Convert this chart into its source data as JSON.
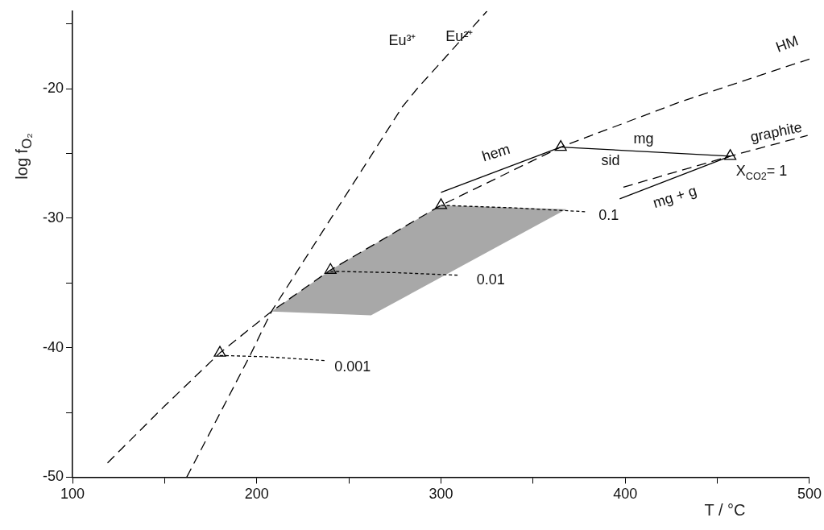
{
  "chart_data": {
    "type": "line",
    "xlabel": "T / °C",
    "ylabel": "log f$_{O₂}$",
    "xlim": [
      100,
      500
    ],
    "xticks": [
      100,
      {
        "value": 150,
        "label": null
      },
      200,
      {
        "value": 250,
        "label": null
      },
      300,
      {
        "value": 350,
        "label": null
      },
      400,
      {
        "value": 450,
        "label": null
      },
      500
    ],
    "ylim": [
      -50,
      -14
    ],
    "yticks": [
      -50,
      {
        "value": -45,
        "label": null
      },
      -40,
      {
        "value": -35,
        "label": null
      },
      -30,
      {
        "value": -25,
        "label": null
      },
      -20,
      {
        "value": -15,
        "label": null
      }
    ],
    "series": [
      {
        "type": "area",
        "color": "#a8a8a8",
        "x": [
          208,
          240,
          300,
          368,
          262,
          208
        ],
        "values": [
          -37.2,
          -34.0,
          -29.0,
          -29.3,
          -37.5,
          -37.2
        ]
      },
      {
        "type": "line",
        "line_style": "dashed",
        "color": "#000000",
        "x": [
          119,
          150,
          180,
          208,
          240,
          300,
          365,
          430,
          500
        ],
        "values": [
          -48.9,
          -44.5,
          -40.4,
          -37.2,
          -34.0,
          -29.0,
          -24.5,
          -21.0,
          -17.7
        ]
      },
      {
        "type": "line",
        "line_style": "dashed",
        "color": "#000000",
        "x": [
          162,
          196,
          208,
          221,
          279,
          287,
          325
        ],
        "values": [
          -50,
          -40.7,
          -37.2,
          -34.3,
          -21.4,
          -20,
          -14
        ]
      },
      {
        "type": "line",
        "line_style": "dashed",
        "color": "#000000",
        "x": [
          399,
          457,
          499
        ],
        "values": [
          -27.6,
          -25.2,
          -23.6
        ]
      },
      {
        "type": "line",
        "line_style": "solid",
        "color": "#000000",
        "x": [
          300,
          365
        ],
        "values": [
          -28.0,
          -24.5
        ]
      },
      {
        "type": "line",
        "line_style": "solid",
        "color": "#000000",
        "x": [
          365,
          457
        ],
        "values": [
          -24.5,
          -25.2
        ]
      },
      {
        "type": "line",
        "line_style": "solid",
        "color": "#000000",
        "x": [
          397,
          457
        ],
        "values": [
          -28.5,
          -25.2
        ]
      },
      {
        "type": "line",
        "line_style": "dotted",
        "color": "#000000",
        "x": [
          180,
          205,
          238
        ],
        "values": [
          -40.6,
          -40.7,
          -41.0
        ]
      },
      {
        "type": "line",
        "line_style": "dotted",
        "color": "#000000",
        "x": [
          240,
          275,
          309
        ],
        "values": [
          -34.1,
          -34.2,
          -34.4
        ]
      },
      {
        "type": "line",
        "line_style": "dotted",
        "color": "#000000",
        "x": [
          300,
          340,
          379
        ],
        "values": [
          -29.0,
          -29.2,
          -29.5
        ]
      },
      {
        "type": "scatter",
        "marker": "triangle",
        "color": "#000000",
        "x": [
          180,
          240,
          300,
          365,
          457
        ],
        "values": [
          -40.4,
          -34.0,
          -29.0,
          -24.5,
          -25.2
        ]
      }
    ],
    "annotations": [
      "Eu³⁺",
      "Eu²⁺",
      "HM",
      "graphite",
      "hem",
      "mg",
      "sid",
      "mg + g",
      "X$_{CO2}$= 1",
      "0.1",
      "0.01",
      "0.001"
    ]
  }
}
